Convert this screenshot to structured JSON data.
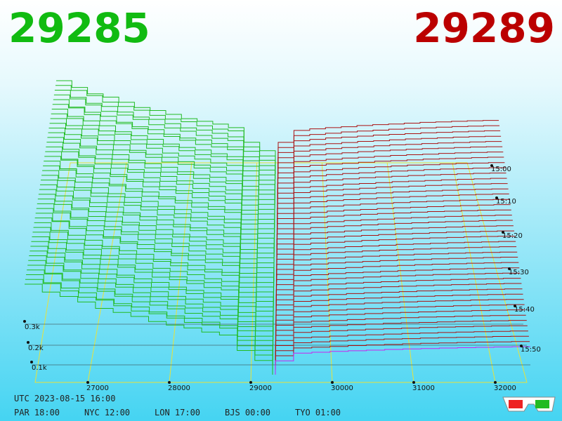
{
  "header": {
    "bid": "29285",
    "ask": "29289"
  },
  "price_labels": [
    "27000",
    "28000",
    "29000",
    "30000",
    "31000",
    "32000"
  ],
  "time_labels": [
    "15:00",
    "15:10",
    "15:20",
    "15:30",
    "15:40",
    "15:50"
  ],
  "depth_labels": [
    "0.3k",
    "0.2k",
    "0.1k"
  ],
  "footer": {
    "utc": "UTC 2023-08-15 16:00",
    "cities": [
      "PAR 18:00",
      "NYC 12:00",
      "LON 17:00",
      "BJS 00:00",
      "TYO 01:00"
    ]
  }
}
